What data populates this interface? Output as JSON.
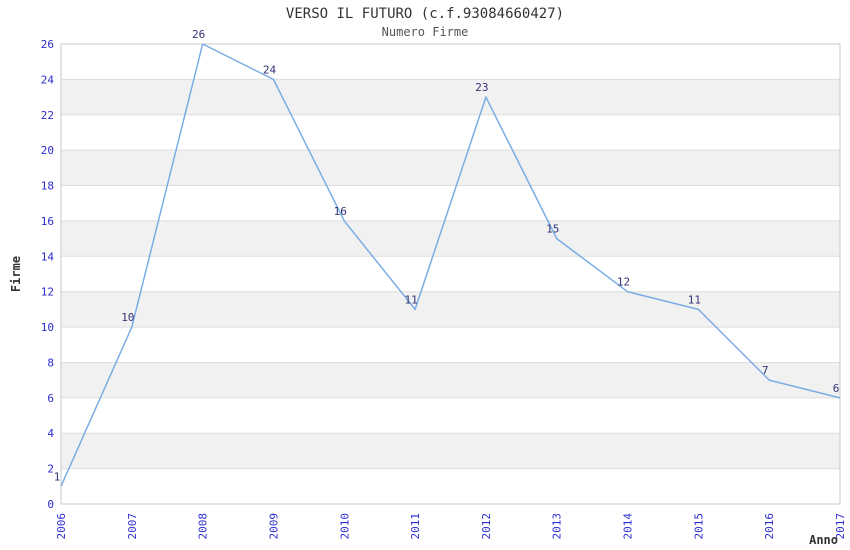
{
  "chart_data": {
    "type": "line",
    "title": "VERSO IL FUTURO (c.f.93084660427)",
    "subtitle": "Numero Firme",
    "xlabel": "Anno",
    "ylabel": "Firme",
    "categories": [
      "2006",
      "2007",
      "2008",
      "2009",
      "2010",
      "2011",
      "2012",
      "2013",
      "2014",
      "2015",
      "2016",
      "2017"
    ],
    "series": [
      {
        "name": "Numero Firme",
        "values": [
          1,
          10,
          26,
          24,
          16,
          11,
          23,
          15,
          12,
          11,
          7,
          6
        ]
      }
    ],
    "ylim": [
      0,
      26
    ],
    "ytick_step": 2,
    "grid": true,
    "legend": "none",
    "point_labels": true,
    "colors": {
      "line": "#7aade4",
      "tick_label": "#2b2bd0",
      "point_label": "#333377",
      "band": "#f1f1f1",
      "gridline": "#dddddd",
      "border": "#c9c9c9",
      "title": "#333333",
      "subtitle": "#555555",
      "axis_title": "#333333",
      "background": "#ffffff"
    }
  }
}
